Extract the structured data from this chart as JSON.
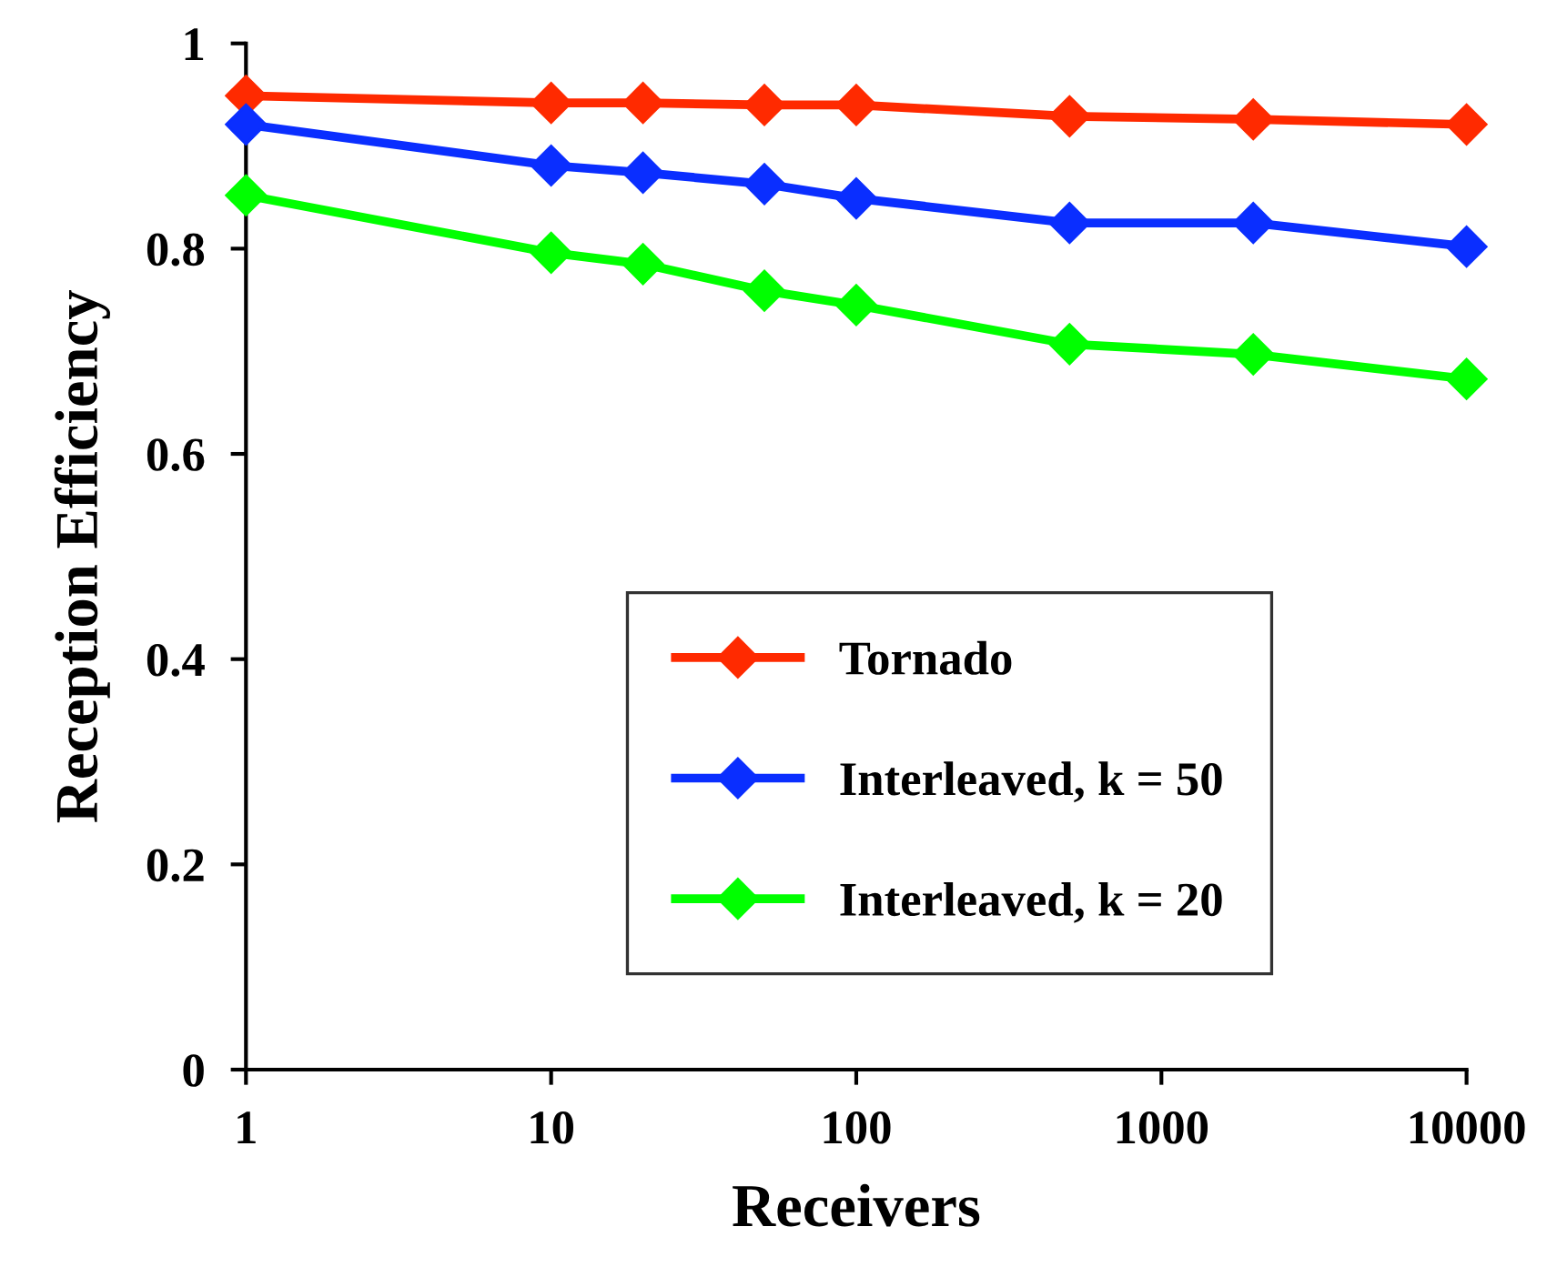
{
  "chart_data": {
    "type": "line",
    "xlabel": "Receivers",
    "ylabel": "Reception Efficiency",
    "log": "x",
    "x": [
      1,
      10,
      20,
      50,
      100,
      500,
      2000,
      10000
    ],
    "series": [
      {
        "name": "Tornado",
        "color": "#ff2a00",
        "values": [
          0.949,
          0.942,
          0.942,
          0.94,
          0.94,
          0.929,
          0.926,
          0.921
        ]
      },
      {
        "name": "Interleaved, k = 50",
        "color": "#0a2eff",
        "values": [
          0.921,
          0.881,
          0.874,
          0.863,
          0.849,
          0.825,
          0.825,
          0.802
        ]
      },
      {
        "name": "Interleaved, k = 20",
        "color": "#00ff00",
        "values": [
          0.852,
          0.796,
          0.785,
          0.759,
          0.745,
          0.707,
          0.697,
          0.673
        ]
      }
    ],
    "xlim": [
      1,
      10000
    ],
    "xticks": [
      1,
      10,
      100,
      1000,
      10000
    ],
    "ylim": [
      0,
      1
    ],
    "yticks": [
      0,
      0.2,
      0.4,
      0.6,
      0.8,
      1
    ],
    "grid": false,
    "legend": "bottom right",
    "marker": "diamond",
    "line_style": "solid"
  }
}
